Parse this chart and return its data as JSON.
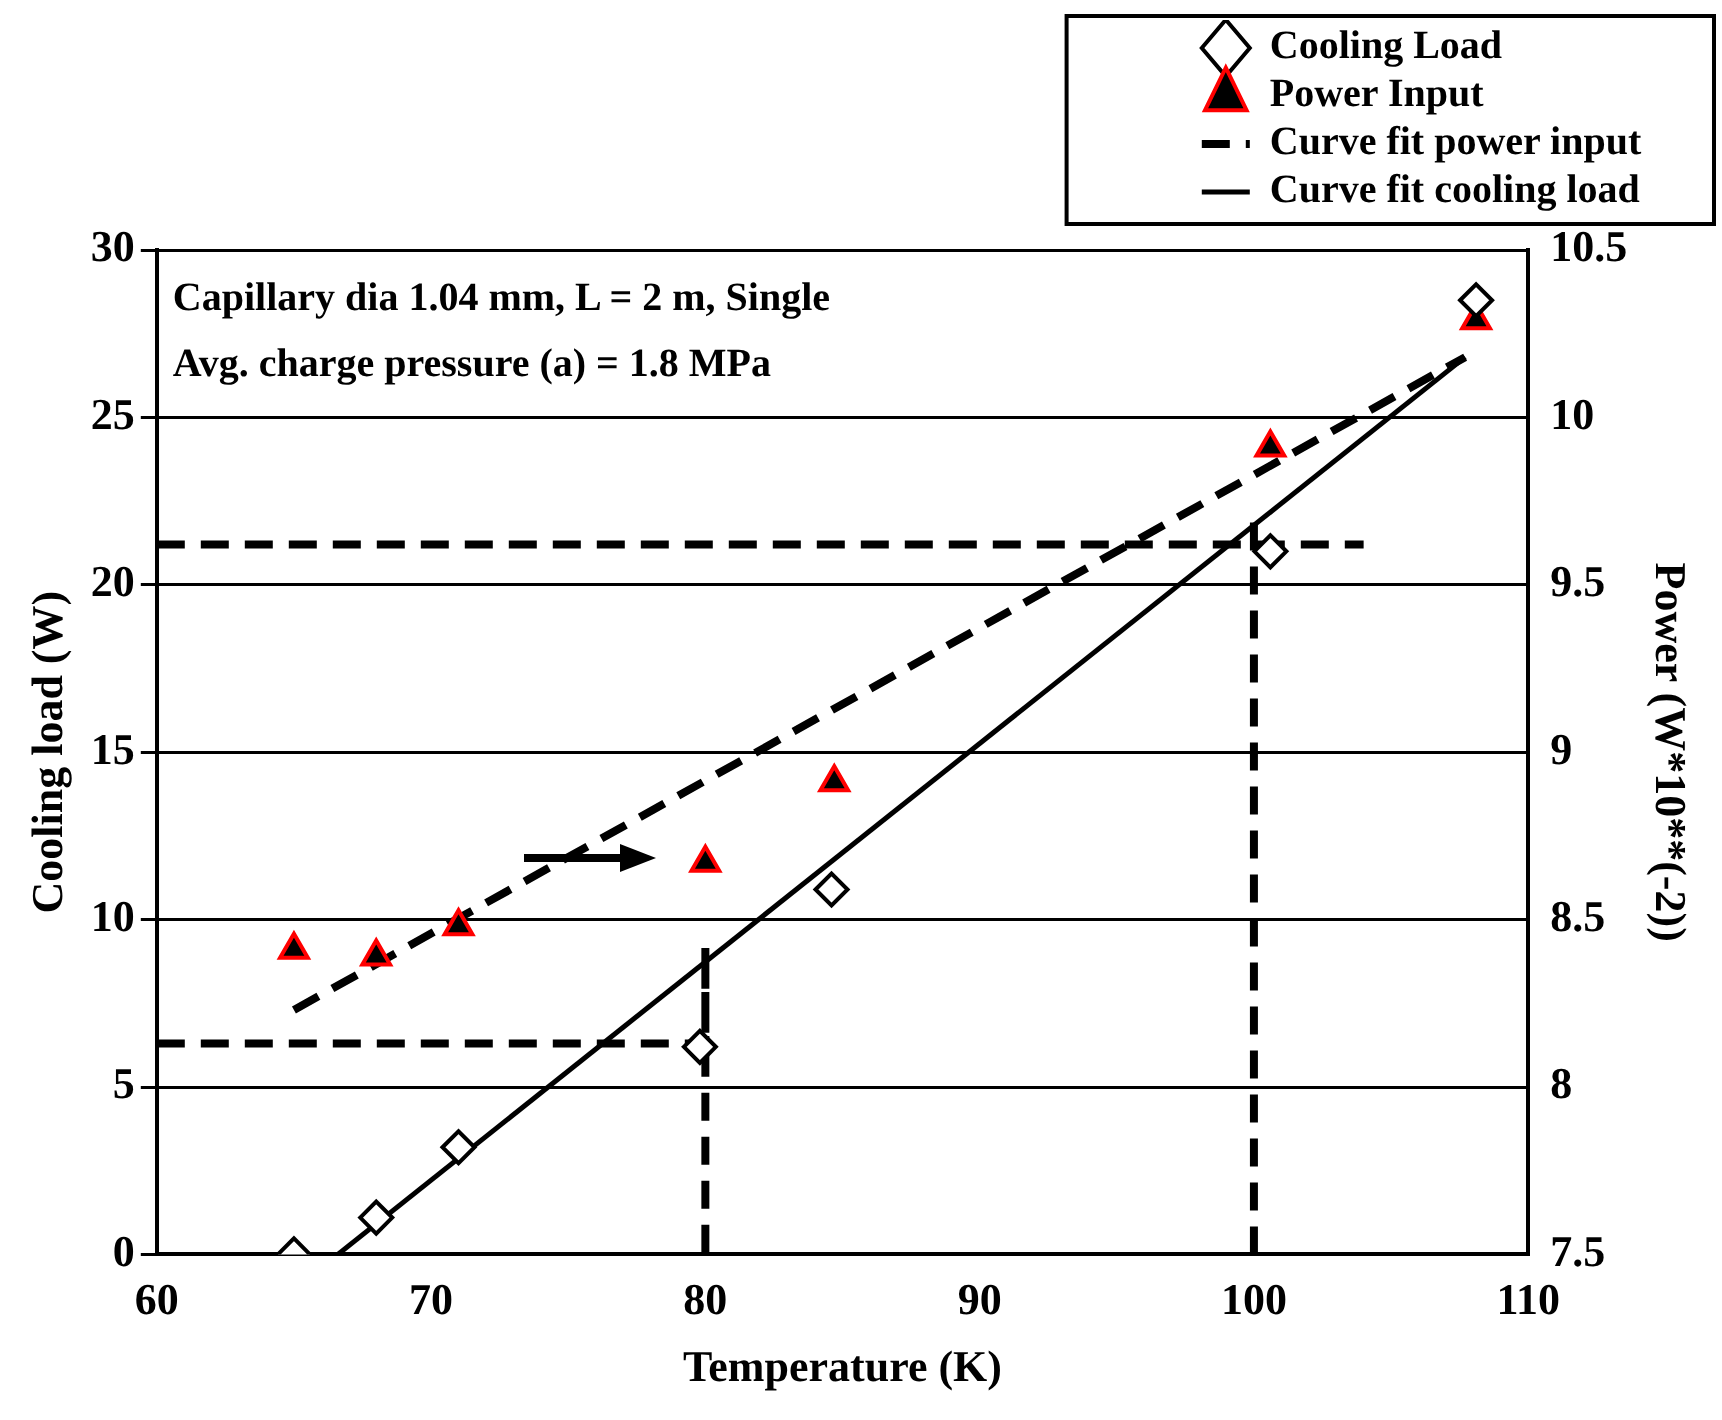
{
  "chart_data": {
    "type": "scatter",
    "xlabel": "Temperature (K)",
    "ylabel": "Cooling load (W)",
    "y2label": "Power (W*10**(-2))",
    "xlim": [
      60,
      110
    ],
    "xticks": [
      60,
      70,
      80,
      90,
      100,
      110
    ],
    "ylim": [
      0,
      30
    ],
    "yticks": [
      0,
      5,
      10,
      15,
      20,
      25,
      30
    ],
    "y2lim": [
      7.5,
      10.5
    ],
    "y2ticks": [
      7.5,
      8,
      8.5,
      9,
      9.5,
      10,
      10.5
    ],
    "grid": "y",
    "legend": "top right",
    "annotations": [
      "Capillary dia 1.04 mm, L = 2 m, Single",
      "Avg. charge pressure (a) = 1.8 MPa"
    ],
    "series": [
      {
        "name": "Cooling Load",
        "type": "scatter",
        "marker": "diamond",
        "color": "#000000",
        "x": [
          65,
          68,
          71,
          79.8,
          84.6,
          100.6,
          108.1
        ],
        "values": [
          0,
          1.1,
          3.2,
          6.2,
          10.9,
          21,
          28.5
        ]
      },
      {
        "name": "Power Input",
        "type": "scatter",
        "marker": "triangle",
        "color": "#ff0000",
        "axis": "y2",
        "x": [
          65,
          68,
          71,
          80,
          84.7,
          100.6,
          108.1
        ],
        "values": [
          8.41,
          8.39,
          8.48,
          8.67,
          8.91,
          9.91,
          10.29
        ]
      },
      {
        "name": "Curve fit power input",
        "type": "line",
        "line_style": "dashed",
        "color": "#000000",
        "axis": "y2",
        "x": [
          65,
          107.7
        ],
        "values": [
          8.23,
          10.18
        ]
      },
      {
        "name": "Curve fit cooling load",
        "type": "line",
        "line_style": "solid",
        "color": "#000000",
        "x": [
          66.6,
          107.7
        ],
        "values": [
          0,
          26.8
        ]
      },
      {
        "type": "line",
        "line_style": "dashed",
        "color": "#000000",
        "x": [
          60,
          80,
          80,
          80
        ],
        "values": [
          6.3,
          6.3,
          9.2,
          0
        ]
      },
      {
        "type": "line",
        "line_style": "dashed",
        "color": "#000000",
        "x": [
          60,
          104
        ],
        "values": [
          21.2,
          21.2
        ]
      },
      {
        "type": "line",
        "line_style": "dashed",
        "color": "#000000",
        "x": [
          100,
          100
        ],
        "values": [
          0,
          21.9
        ]
      }
    ]
  }
}
